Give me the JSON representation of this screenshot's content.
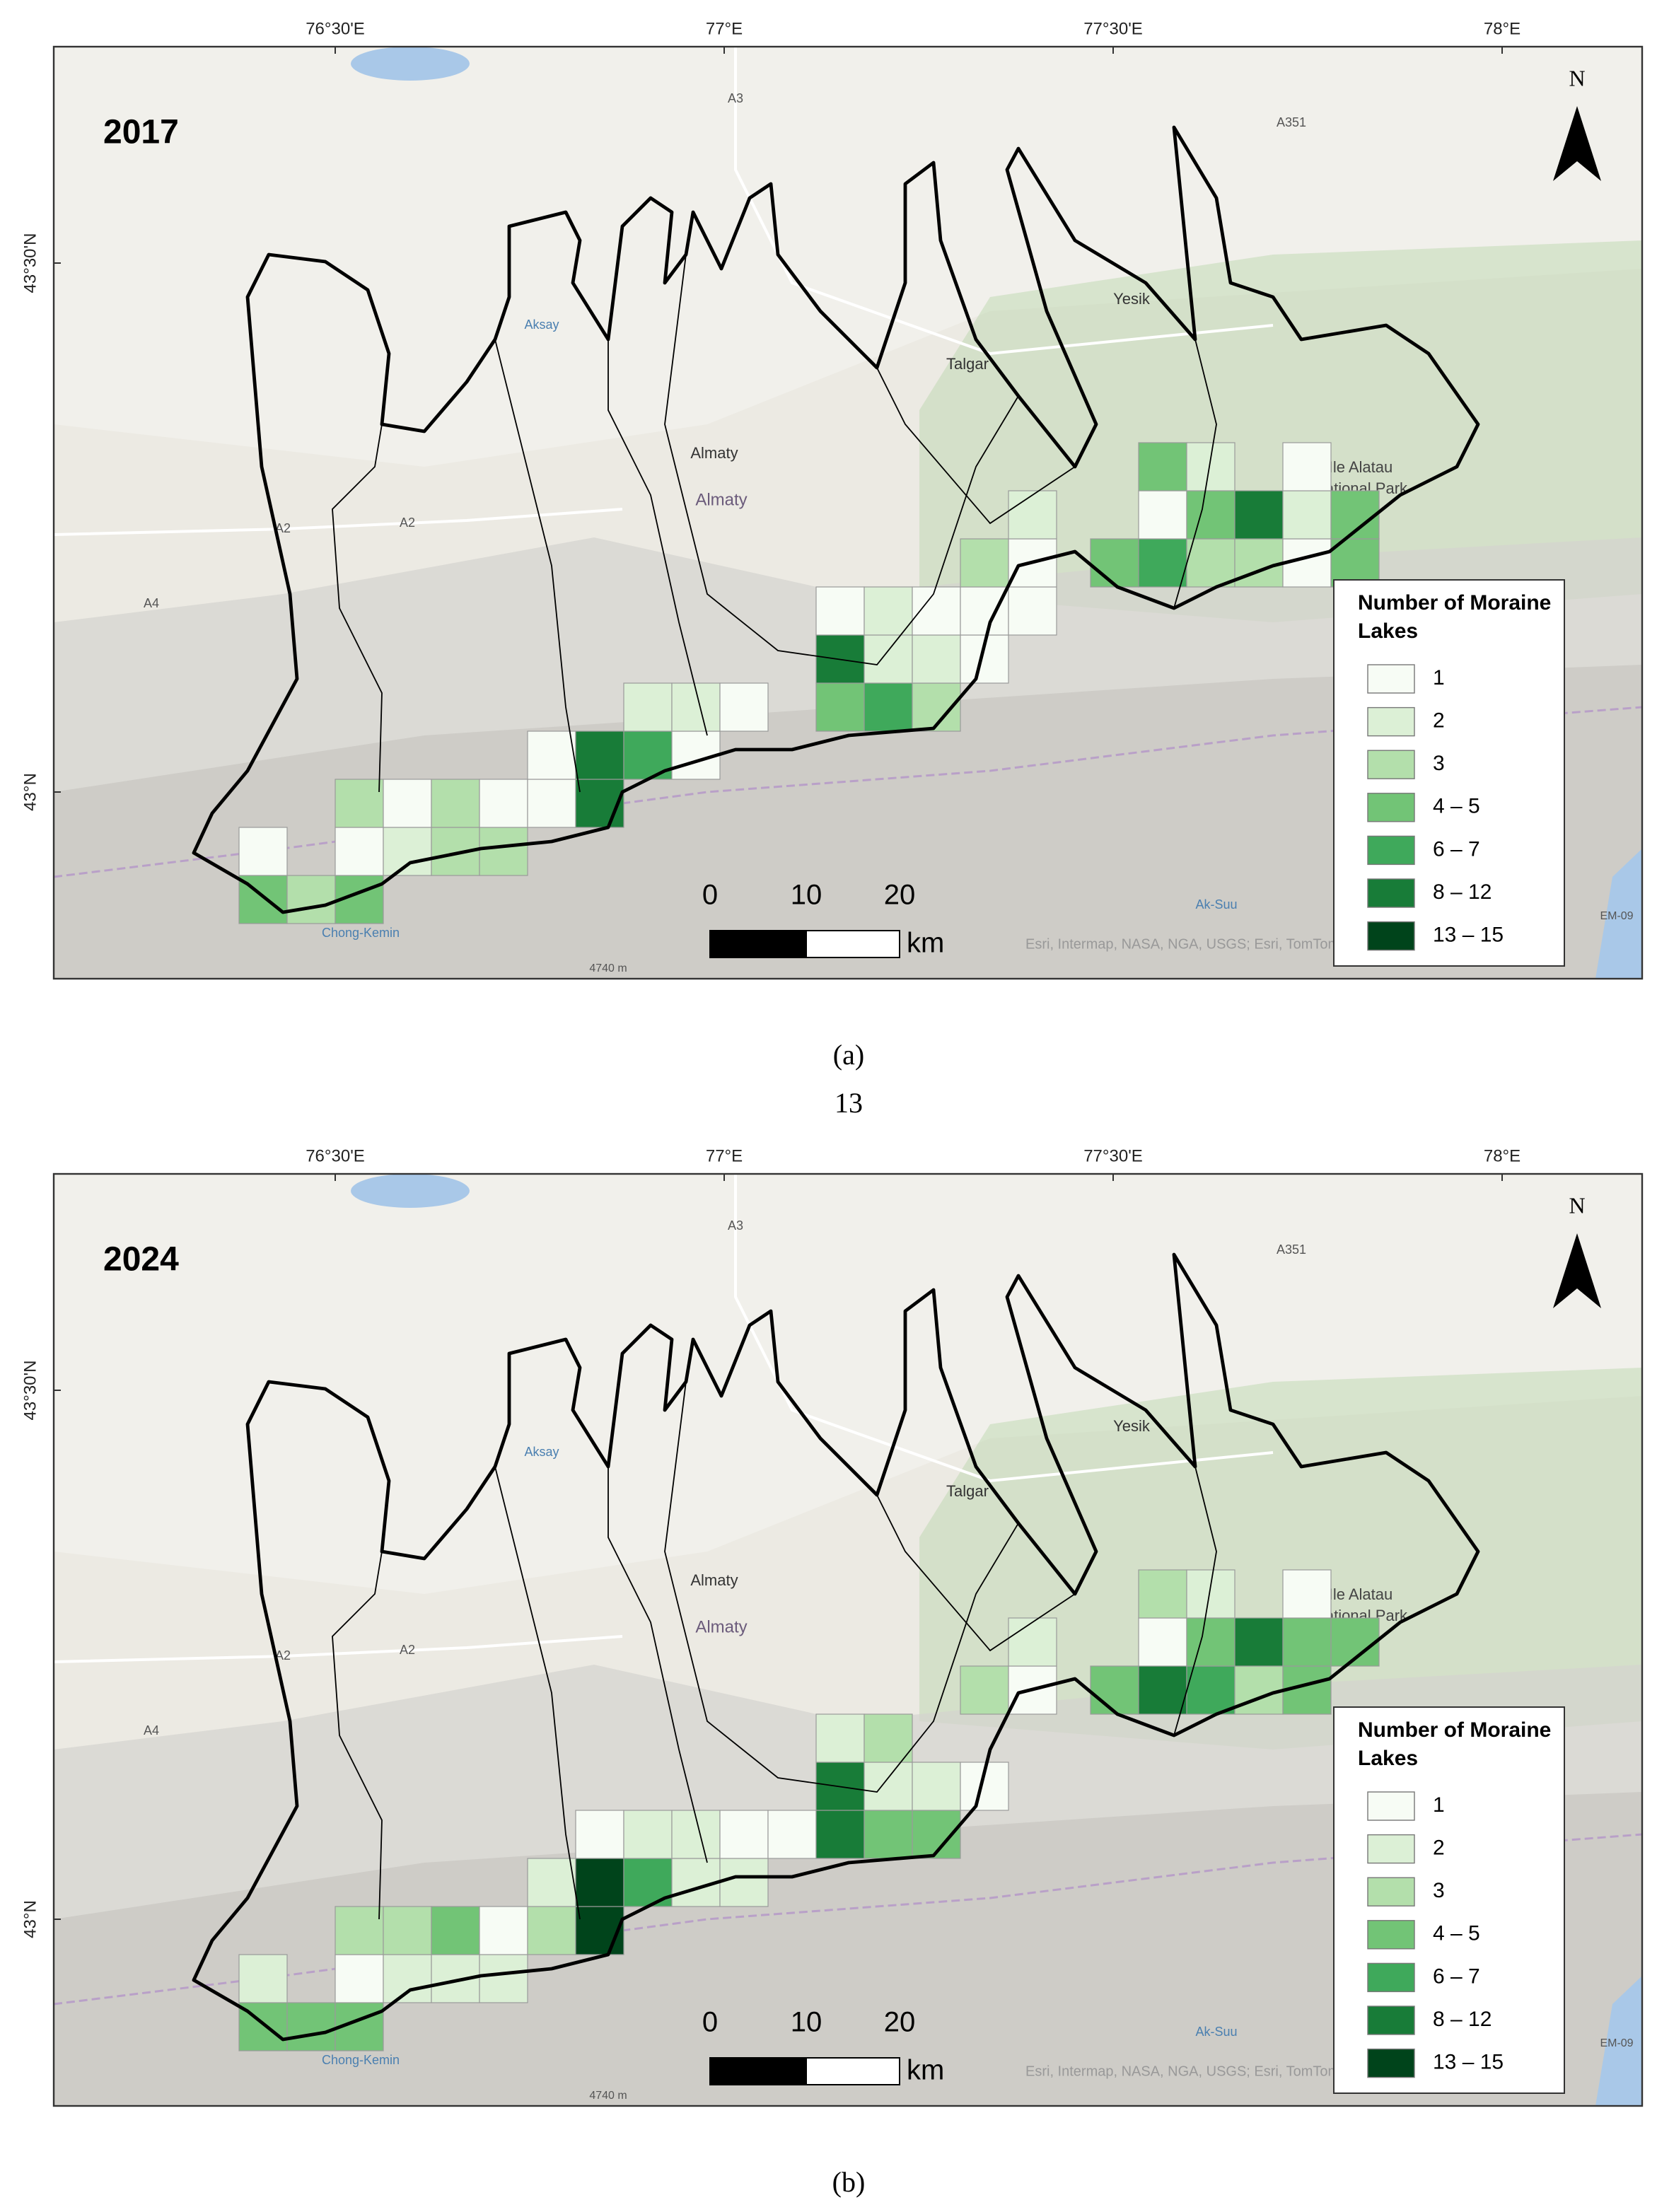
{
  "figure": {
    "page_number": "13",
    "panels": [
      {
        "year": "2017",
        "caption": "(a)",
        "lon_ticks": [
          "76°30'E",
          "77°E",
          "77°30'E",
          "78°E"
        ],
        "lat_ticks": [
          "43°30'N",
          "43°N"
        ],
        "places": [
          "A3",
          "A351",
          "Yesik",
          "Talgar",
          "Almaty",
          "Almaty",
          "Ile Alatau",
          "National Park",
          "A2",
          "A2",
          "A4",
          "Aksay",
          "Chong-Kemin",
          "4740 m",
          "Ak-Suu",
          "EM-09"
        ],
        "north": "N",
        "legend": {
          "title": [
            "Number of Moraine",
            "Lakes"
          ],
          "classes": [
            {
              "label": "1",
              "color": "#f7fcf5"
            },
            {
              "label": "2",
              "color": "#dcf0d6"
            },
            {
              "label": "3",
              "color": "#b3dfab"
            },
            {
              "label": "4 – 5",
              "color": "#72c476"
            },
            {
              "label": "6 – 7",
              "color": "#3fa95b"
            },
            {
              "label": "8 – 12",
              "color": "#187c38"
            },
            {
              "label": "13 – 15",
              "color": "#00441b"
            }
          ]
        },
        "scale": {
          "labels": [
            "0",
            "10",
            "20"
          ],
          "unit": "km"
        },
        "attribution": "Esri, Intermap, NASA, NGA, USGS; Esri, TomTom"
      },
      {
        "year": "2024",
        "caption": "(b)",
        "lon_ticks": [
          "76°30'E",
          "77°E",
          "77°30'E",
          "78°E"
        ],
        "lat_ticks": [
          "43°30'N",
          "43°N"
        ],
        "places": [
          "A3",
          "A351",
          "Yesik",
          "Talgar",
          "Almaty",
          "Almaty",
          "Ile Alatau",
          "National Park",
          "A2",
          "A2",
          "A4",
          "Aksay",
          "Chong-Kemin",
          "4740 m",
          "Ak-Suu",
          "EM-09"
        ],
        "north": "N",
        "legend": {
          "title": [
            "Number of Moraine",
            "Lakes"
          ],
          "classes": [
            {
              "label": "1",
              "color": "#f7fcf5"
            },
            {
              "label": "2",
              "color": "#dcf0d6"
            },
            {
              "label": "3",
              "color": "#b3dfab"
            },
            {
              "label": "4 – 5",
              "color": "#72c476"
            },
            {
              "label": "6 – 7",
              "color": "#3fa95b"
            },
            {
              "label": "8 – 12",
              "color": "#187c38"
            },
            {
              "label": "13 – 15",
              "color": "#00441b"
            }
          ]
        },
        "scale": {
          "labels": [
            "0",
            "10",
            "20"
          ],
          "unit": "km"
        },
        "attribution": "Esri, Intermap, NASA, NGA, USGS; Esri, TomTom"
      }
    ]
  }
}
